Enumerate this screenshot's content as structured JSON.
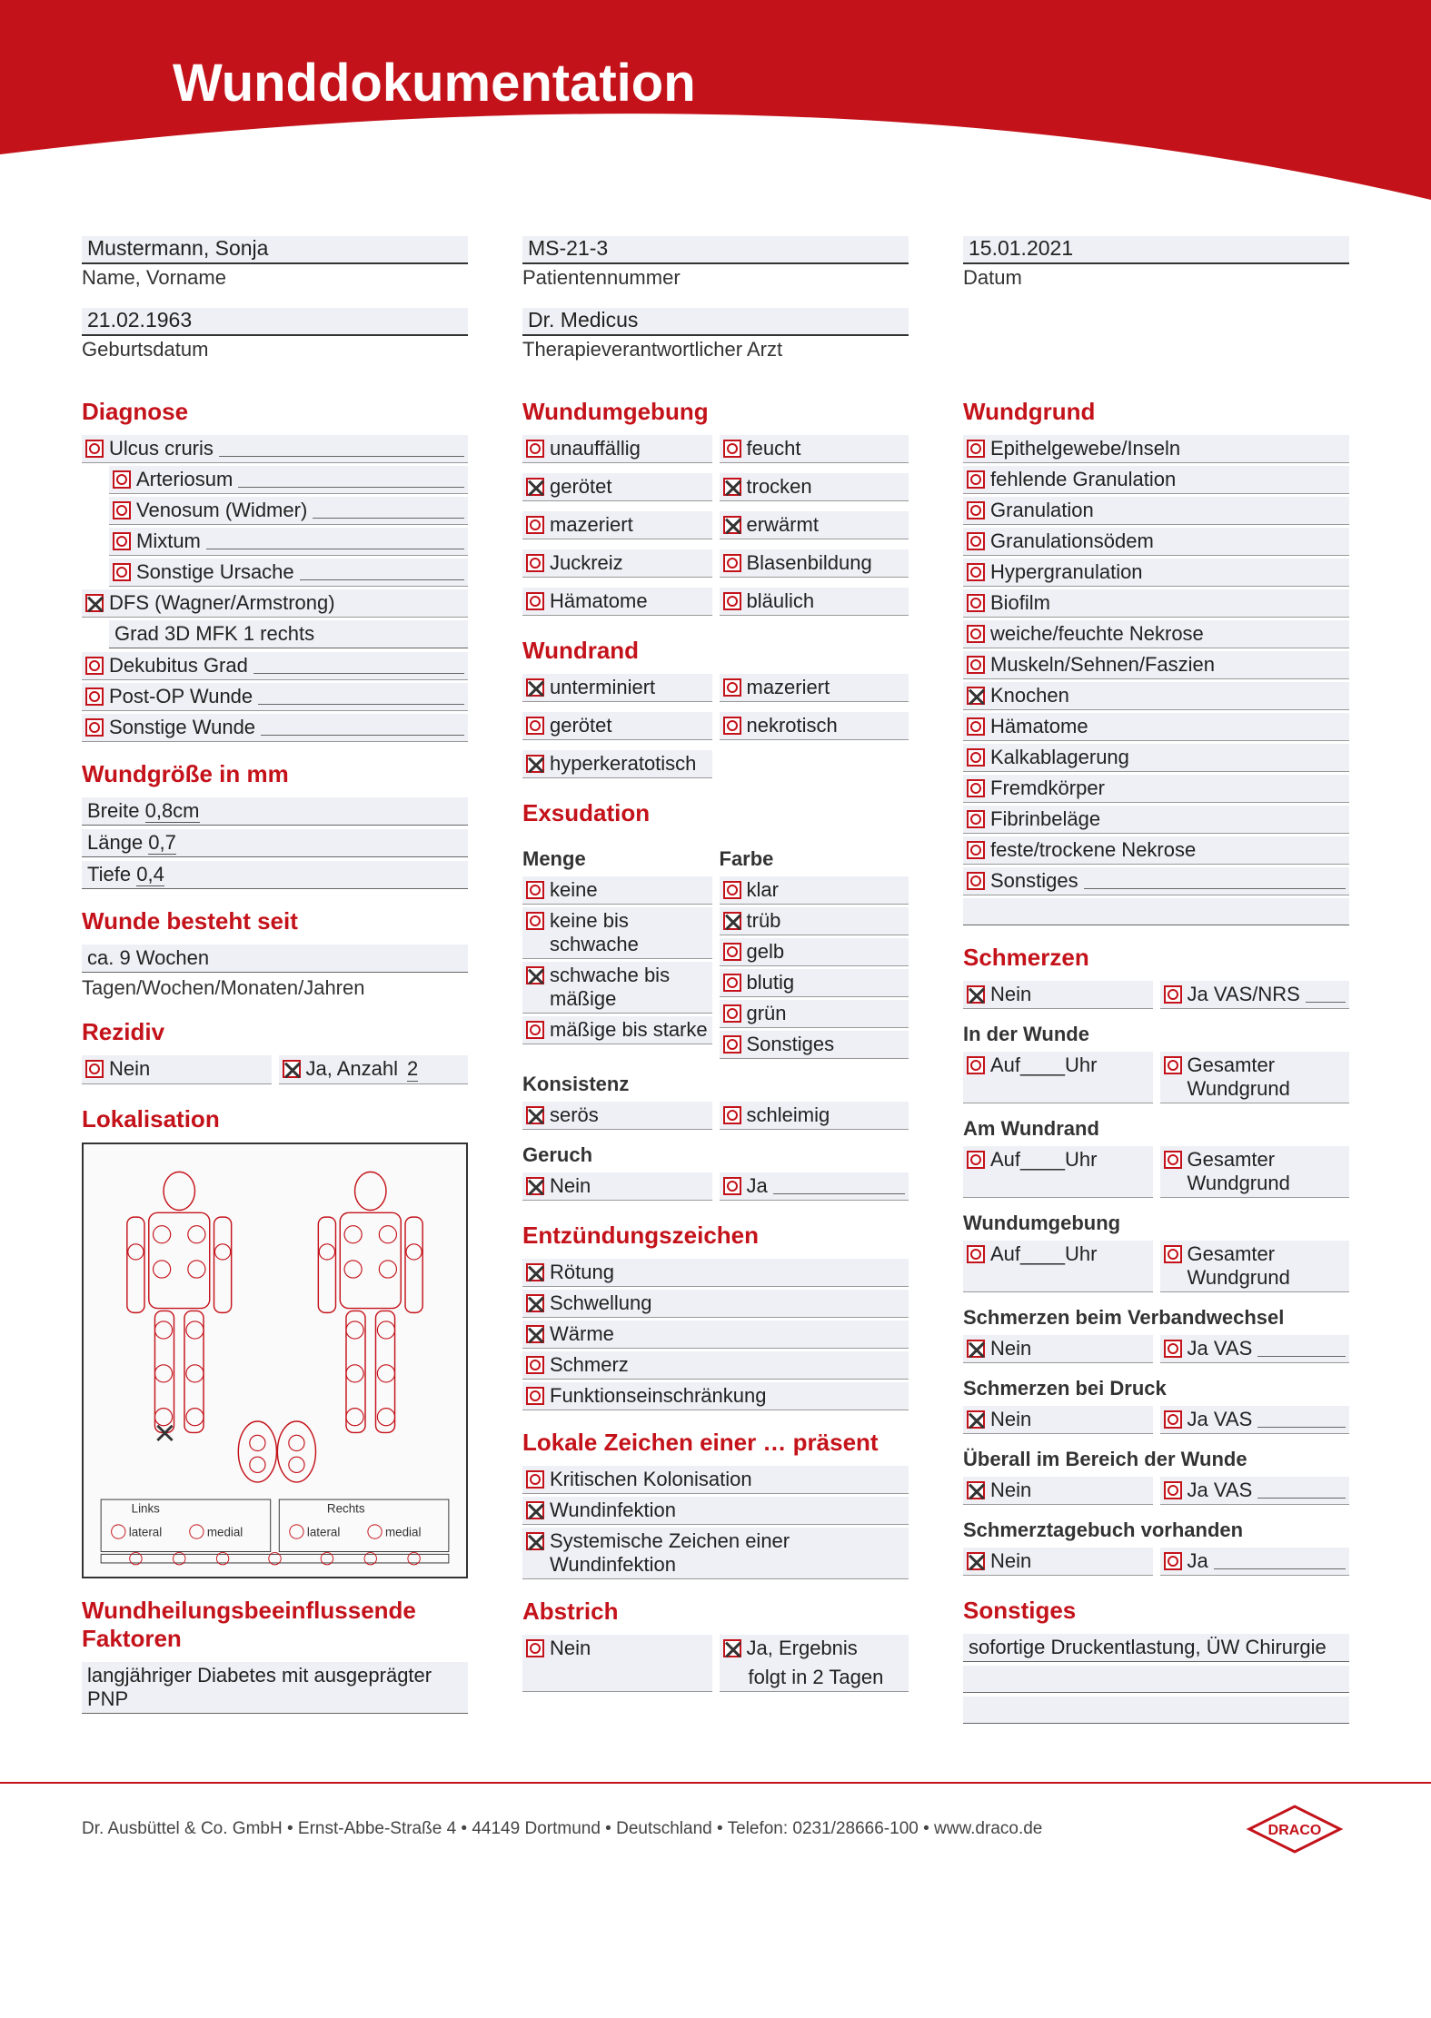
{
  "colors": {
    "brand": "#c4121a",
    "fieldBg": "#eef0f5",
    "text": "#222"
  },
  "title": "Wunddokumentation",
  "patient": {
    "name": {
      "label": "Name, Vorname",
      "value": "Mustermann, Sonja"
    },
    "pid": {
      "label": "Patientennummer",
      "value": "MS-21-3"
    },
    "date": {
      "label": "Datum",
      "value": "15.01.2021"
    },
    "dob": {
      "label": "Geburtsdatum",
      "value": "21.02.1963"
    },
    "doctor": {
      "label": "Therapieverantwortlicher Arzt",
      "value": "Dr. Medicus"
    }
  },
  "diagnose": {
    "heading": "Diagnose",
    "items": [
      {
        "label": "Ulcus cruris",
        "checked": false,
        "trail": true
      },
      {
        "label": "Arteriosum",
        "checked": false,
        "indent": true,
        "trail": true
      },
      {
        "label": "Venosum (Widmer)",
        "checked": false,
        "indent": true,
        "trail": true
      },
      {
        "label": "Mixtum",
        "checked": false,
        "indent": true,
        "trail": true
      },
      {
        "label": "Sonstige Ursache",
        "checked": false,
        "indent": true,
        "trail": true
      },
      {
        "label": "DFS (Wagner/Armstrong)",
        "checked": true
      },
      {
        "label_prefix": "Grad",
        "value": "3D     MFK 1 rechts",
        "indent": true,
        "plain": true
      },
      {
        "label": "Dekubitus Grad",
        "checked": false,
        "trail": true
      },
      {
        "label": "Post-OP Wunde",
        "checked": false,
        "trail": true
      },
      {
        "label": "Sonstige Wunde",
        "checked": false,
        "trail": true
      }
    ]
  },
  "wundgroesse": {
    "heading": "Wundgröße in mm",
    "rows": [
      {
        "label": "Breite",
        "value": "0,8cm"
      },
      {
        "label": "Länge",
        "value": "0,7"
      },
      {
        "label": "Tiefe",
        "value": "0,4"
      }
    ]
  },
  "besteht": {
    "heading": "Wunde besteht seit",
    "value": "ca. 9 Wochen",
    "unit_label": "Tagen/Wochen/Monaten/Jahren"
  },
  "rezidiv": {
    "heading": "Rezidiv",
    "nein": {
      "label": "Nein",
      "checked": false
    },
    "ja": {
      "label": "Ja, Anzahl",
      "checked": true,
      "value": "2"
    }
  },
  "lokalisation": {
    "heading": "Lokalisation"
  },
  "faktoren": {
    "heading": "Wundheilungsbeeinflussende Faktoren",
    "value": "langjähriger Diabetes mit ausgeprägter PNP"
  },
  "wundumgebung": {
    "heading": "Wundumgebung",
    "left": [
      {
        "label": "unauffällig",
        "checked": false
      },
      {
        "label": "gerötet",
        "checked": true
      },
      {
        "label": "mazeriert",
        "checked": false
      },
      {
        "label": "Juckreiz",
        "checked": false
      },
      {
        "label": "Hämatome",
        "checked": false
      }
    ],
    "right": [
      {
        "label": "feucht",
        "checked": false
      },
      {
        "label": "trocken",
        "checked": true
      },
      {
        "label": "erwärmt",
        "checked": true
      },
      {
        "label": "Blasenbildung",
        "checked": false
      },
      {
        "label": "bläulich",
        "checked": false
      }
    ]
  },
  "wundrand": {
    "heading": "Wundrand",
    "left": [
      {
        "label": "unterminiert",
        "checked": true
      },
      {
        "label": "gerötet",
        "checked": false
      },
      {
        "label": "hyperkeratotisch",
        "checked": true
      }
    ],
    "right": [
      {
        "label": "mazeriert",
        "checked": false
      },
      {
        "label": "nekrotisch",
        "checked": false
      }
    ]
  },
  "exsudation": {
    "heading": "Exsudation",
    "menge_h": "Menge",
    "farbe_h": "Farbe",
    "menge": [
      {
        "label": "keine",
        "checked": false
      },
      {
        "label": "keine bis schwache",
        "checked": false
      },
      {
        "label": "schwache bis mäßige",
        "checked": true
      },
      {
        "label": "mäßige bis starke",
        "checked": false
      }
    ],
    "farbe": [
      {
        "label": "klar",
        "checked": false
      },
      {
        "label": "trüb",
        "checked": true
      },
      {
        "label": "gelb",
        "checked": false
      },
      {
        "label": "blutig",
        "checked": false
      },
      {
        "label": "grün",
        "checked": false
      },
      {
        "label": "Sonstiges",
        "checked": false
      }
    ],
    "konsistenz_h": "Konsistenz",
    "konsistenz": [
      {
        "label": "serös",
        "checked": true
      },
      {
        "label": "schleimig",
        "checked": false
      }
    ],
    "geruch_h": "Geruch",
    "geruch": [
      {
        "label": "Nein",
        "checked": true
      },
      {
        "label": "Ja",
        "checked": false,
        "trail": true
      }
    ]
  },
  "entzuendung": {
    "heading": "Entzündungszeichen",
    "items": [
      {
        "label": "Rötung",
        "checked": true
      },
      {
        "label": "Schwellung",
        "checked": true
      },
      {
        "label": "Wärme",
        "checked": true
      },
      {
        "label": "Schmerz",
        "checked": false
      },
      {
        "label": "Funktionseinschränkung",
        "checked": false
      }
    ]
  },
  "lokaleZeichen": {
    "heading": "Lokale Zeichen einer … präsent",
    "items": [
      {
        "label": "Kritischen Kolonisation",
        "checked": false
      },
      {
        "label": "Wundinfektion",
        "checked": true
      },
      {
        "label": "Systemische Zeichen einer Wundinfektion",
        "checked": true
      }
    ]
  },
  "abstrich": {
    "heading": "Abstrich",
    "nein": {
      "label": "Nein",
      "checked": false
    },
    "ja": {
      "label": "Ja, Ergebnis",
      "checked": true,
      "value": "folgt in 2 Tagen"
    }
  },
  "wundgrund": {
    "heading": "Wundgrund",
    "items": [
      {
        "label": "Epithelgewebe/Inseln",
        "checked": false
      },
      {
        "label": "fehlende Granulation",
        "checked": false
      },
      {
        "label": "Granulation",
        "checked": false
      },
      {
        "label": "Granulationsödem",
        "checked": false
      },
      {
        "label": "Hypergranulation",
        "checked": false
      },
      {
        "label": "Biofilm",
        "checked": false
      },
      {
        "label": "weiche/feuchte Nekrose",
        "checked": false
      },
      {
        "label": "Muskeln/Sehnen/Faszien",
        "checked": false
      },
      {
        "label": "Knochen",
        "checked": true
      },
      {
        "label": "Hämatome",
        "checked": false
      },
      {
        "label": "Kalkablagerung",
        "checked": false
      },
      {
        "label": "Fremdkörper",
        "checked": false
      },
      {
        "label": "Fibrinbeläge",
        "checked": false
      },
      {
        "label": "feste/trockene Nekrose",
        "checked": false
      },
      {
        "label": "Sonstiges",
        "checked": false,
        "trail": true
      }
    ]
  },
  "schmerzen": {
    "heading": "Schmerzen",
    "main": {
      "nein": {
        "label": "Nein",
        "checked": true
      },
      "ja": {
        "label": "Ja VAS/NRS",
        "checked": false
      }
    },
    "sections": [
      {
        "title": "In der Wunde",
        "auf": "Auf____Uhr",
        "ges": "Gesamter Wundgrund"
      },
      {
        "title": "Am Wundrand",
        "auf": "Auf____Uhr",
        "ges": "Gesamter Wundgrund"
      },
      {
        "title": "Wundumgebung",
        "auf": "Auf____Uhr",
        "ges": "Gesamter Wundgrund"
      }
    ],
    "extras": [
      {
        "title": "Schmerzen beim Verbandwechsel",
        "nein": true,
        "ja_label": "Ja VAS"
      },
      {
        "title": "Schmerzen bei Druck",
        "nein": true,
        "ja_label": "Ja VAS"
      },
      {
        "title": "Überall im Bereich der Wunde",
        "nein": true,
        "ja_label": "Ja VAS"
      },
      {
        "title": "Schmerztagebuch vorhanden",
        "nein": true,
        "ja_label": "Ja"
      }
    ]
  },
  "sonstiges": {
    "heading": "Sonstiges",
    "lines": [
      "sofortige Druckentlastung, ÜW Chirurgie",
      "",
      ""
    ]
  },
  "footer": {
    "text": "Dr. Ausbüttel & Co. GmbH • Ernst-Abbe-Straße 4 • 44149 Dortmund • Deutschland • Telefon: 0231/28666-100 • www.draco.de",
    "brand": "DRACO"
  },
  "diagram_labels": {
    "links": "Links",
    "rechts": "Rechts",
    "lateral": "lateral",
    "medial": "medial"
  }
}
